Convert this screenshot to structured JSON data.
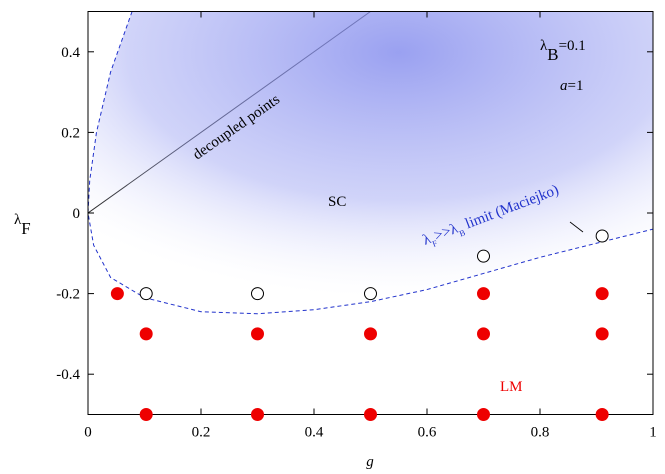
{
  "chart_data": {
    "type": "scatter",
    "xlabel": "g",
    "ylabel": [
      {
        "text": "λ"
      },
      {
        "text": "F",
        "sub": true
      }
    ],
    "xlim": [
      0,
      1
    ],
    "ylim": [
      -0.5,
      0.5
    ],
    "xticks": [
      0,
      0.2,
      0.4,
      0.6,
      0.8,
      1
    ],
    "yticks": [
      -0.4,
      -0.2,
      0,
      0.2,
      0.4
    ],
    "series": [
      {
        "color": "#ee0000",
        "filled": true,
        "x": [
          0.052,
          0.103,
          0.103,
          0.3,
          0.3,
          0.5,
          0.5,
          0.7,
          0.7,
          0.7,
          0.91,
          0.91,
          0.91
        ],
        "values": [
          -0.2,
          -0.3,
          -0.5,
          -0.3,
          -0.5,
          -0.3,
          -0.5,
          -0.2,
          -0.3,
          -0.5,
          -0.2,
          -0.3,
          -0.5
        ]
      },
      {
        "color": "#000000",
        "filled": false,
        "x": [
          0.103,
          0.3,
          0.5,
          0.7,
          0.91
        ],
        "values": [
          -0.2,
          -0.2,
          -0.2,
          -0.107,
          -0.057
        ]
      }
    ],
    "lines": [
      {
        "color": "#000000",
        "dashed": false,
        "x": [
          0,
          0.5
        ],
        "y": [
          0,
          0.5
        ]
      },
      {
        "color": "#2233cc",
        "dashed": true,
        "shaded": true,
        "x": [
          0.078,
          0.04,
          0.015,
          0.003,
          0,
          0.01,
          0.04,
          0.1,
          0.2,
          0.3,
          0.4,
          0.5,
          0.6,
          0.7,
          0.8,
          0.9,
          1
        ],
        "y": [
          0.5,
          0.35,
          0.2,
          0.08,
          0,
          -0.08,
          -0.16,
          -0.21,
          -0.245,
          -0.25,
          -0.24,
          -0.22,
          -0.19,
          -0.15,
          -0.11,
          -0.075,
          -0.04
        ]
      }
    ],
    "annotations": [
      {
        "parts": [
          {
            "text": "λ"
          },
          {
            "text": "B",
            "sub": true
          },
          {
            "text": "=0.1"
          }
        ],
        "color": "#000000"
      },
      {
        "parts": [
          {
            "text": "a",
            "italic": true
          },
          {
            "text": "=1"
          }
        ],
        "color": "#000000"
      },
      {
        "parts": [
          {
            "text": "SC"
          }
        ],
        "color": "#000000"
      },
      {
        "parts": [
          {
            "text": "LM"
          }
        ],
        "color": "#ee0000"
      },
      {
        "parts": [
          {
            "text": "decoupled points"
          }
        ],
        "color": "#000000"
      },
      {
        "parts": [
          {
            "text": "λ"
          },
          {
            "text": "F",
            "sub": true
          },
          {
            "text": ">>λ"
          },
          {
            "text": "B",
            "sub": true
          },
          {
            "text": "  limit (Maciejko)"
          }
        ],
        "color": "#2233cc"
      }
    ]
  }
}
